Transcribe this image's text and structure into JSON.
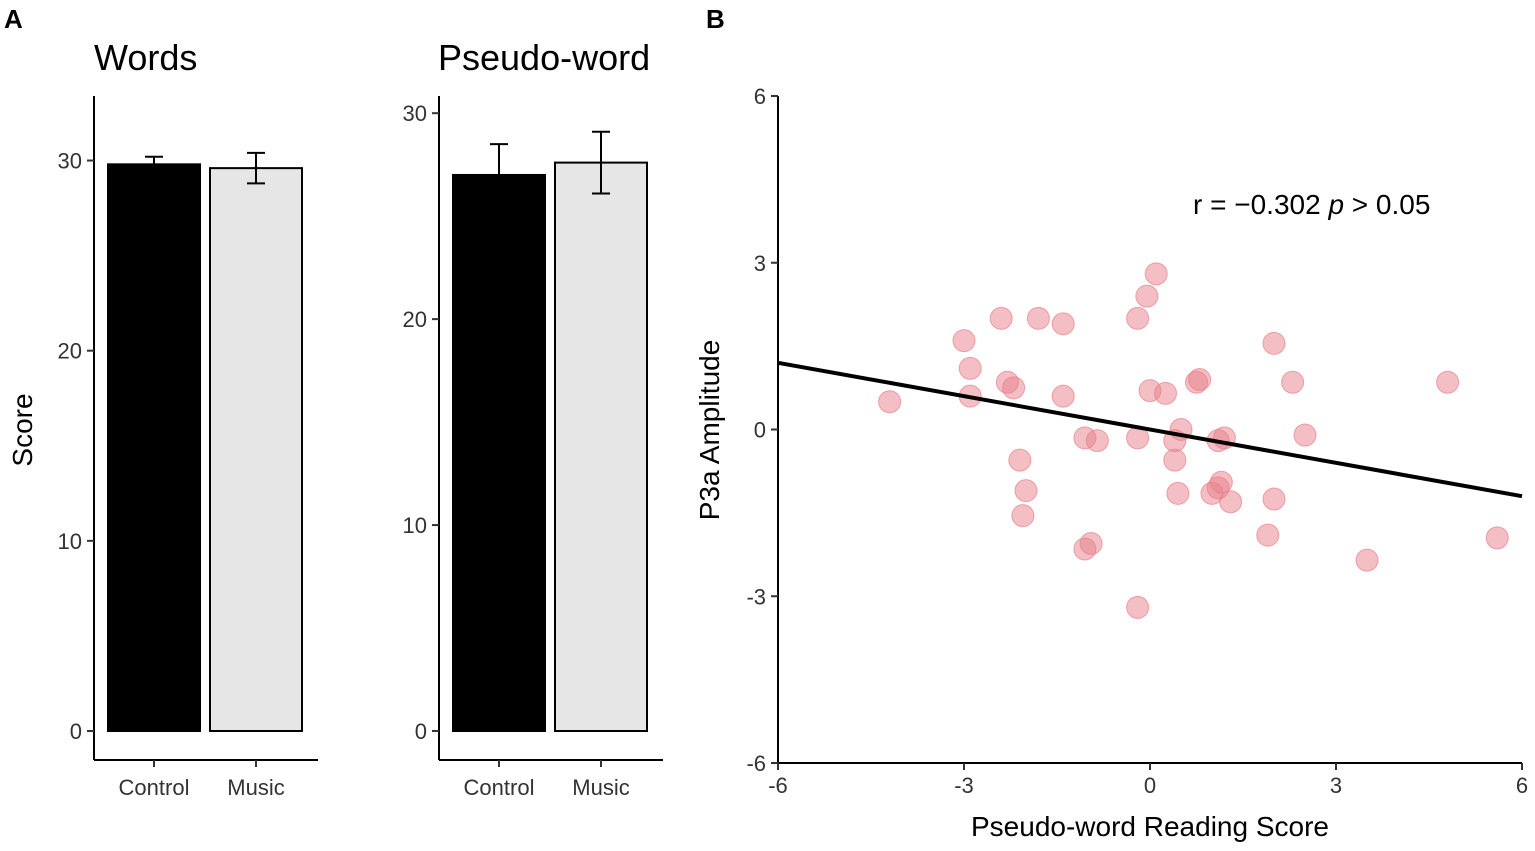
{
  "panels": {
    "a_label": "A",
    "b_label": "B"
  },
  "chart_data": [
    {
      "type": "bar",
      "title": "Words",
      "ylabel": "Score",
      "xlabel": "",
      "categories": [
        "Control",
        "Music"
      ],
      "values": [
        29.8,
        29.6
      ],
      "errors": [
        0.4,
        0.8
      ],
      "colors": [
        "#000000",
        "#e6e6e6"
      ],
      "ylim": [
        0,
        31.5
      ],
      "yticks": [
        0,
        10,
        20,
        30
      ],
      "grid": false
    },
    {
      "type": "bar",
      "title": "Pseudo-word",
      "ylabel": "",
      "xlabel": "",
      "categories": [
        "Control",
        "Music"
      ],
      "values": [
        27.0,
        27.6
      ],
      "errors": [
        1.5,
        1.5
      ],
      "colors": [
        "#000000",
        "#e6e6e6"
      ],
      "ylim": [
        0,
        30.3
      ],
      "yticks": [
        0,
        10,
        20,
        30
      ],
      "grid": false
    },
    {
      "type": "scatter",
      "title": "",
      "xlabel": "Pseudo-word Reading Score",
      "ylabel": "P3a Amplitude",
      "xlim": [
        -6,
        6
      ],
      "ylim": [
        -6,
        6
      ],
      "xticks": [
        -6,
        -3,
        0,
        3,
        6
      ],
      "yticks": [
        -6,
        -3,
        0,
        3,
        6
      ],
      "point_color": "#e8808a",
      "annotation": {
        "r_text": "r = −0.302 ",
        "p_symbol": "p",
        "p_text": " > 0.05"
      },
      "fit_line": {
        "x": [
          -6,
          6
        ],
        "y": [
          1.2,
          -1.2
        ]
      },
      "points": [
        {
          "x": -4.2,
          "y": 0.5
        },
        {
          "x": -3.0,
          "y": 1.6
        },
        {
          "x": -2.9,
          "y": 1.1
        },
        {
          "x": -2.9,
          "y": 0.6
        },
        {
          "x": -2.4,
          "y": 2.0
        },
        {
          "x": -2.3,
          "y": 0.85
        },
        {
          "x": -2.2,
          "y": 0.75
        },
        {
          "x": -2.1,
          "y": -0.55
        },
        {
          "x": -2.0,
          "y": -1.1
        },
        {
          "x": -2.05,
          "y": -1.55
        },
        {
          "x": -1.8,
          "y": 2.0
        },
        {
          "x": -1.4,
          "y": 1.9
        },
        {
          "x": -1.4,
          "y": 0.6
        },
        {
          "x": -1.05,
          "y": -0.15
        },
        {
          "x": -0.85,
          "y": -0.2
        },
        {
          "x": -1.05,
          "y": -2.15
        },
        {
          "x": -0.95,
          "y": -2.05
        },
        {
          "x": -0.2,
          "y": 2.0
        },
        {
          "x": -0.05,
          "y": 2.4
        },
        {
          "x": 0.1,
          "y": 2.8
        },
        {
          "x": 0.0,
          "y": 0.7
        },
        {
          "x": 0.25,
          "y": 0.65
        },
        {
          "x": -0.2,
          "y": -0.15
        },
        {
          "x": -0.2,
          "y": -3.2
        },
        {
          "x": 0.4,
          "y": -0.2
        },
        {
          "x": 0.5,
          "y": 0.0
        },
        {
          "x": 0.4,
          "y": -0.55
        },
        {
          "x": 0.45,
          "y": -1.15
        },
        {
          "x": 0.75,
          "y": 0.85
        },
        {
          "x": 0.8,
          "y": 0.9
        },
        {
          "x": 1.1,
          "y": -0.2
        },
        {
          "x": 1.2,
          "y": -0.15
        },
        {
          "x": 1.0,
          "y": -1.15
        },
        {
          "x": 1.1,
          "y": -1.05
        },
        {
          "x": 1.15,
          "y": -0.95
        },
        {
          "x": 1.3,
          "y": -1.3
        },
        {
          "x": 2.0,
          "y": 1.55
        },
        {
          "x": 2.3,
          "y": 0.85
        },
        {
          "x": 2.0,
          "y": -1.25
        },
        {
          "x": 1.9,
          "y": -1.9
        },
        {
          "x": 2.5,
          "y": -0.1
        },
        {
          "x": 3.5,
          "y": -2.35
        },
        {
          "x": 4.8,
          "y": 0.85
        },
        {
          "x": 5.6,
          "y": -1.95
        }
      ]
    }
  ]
}
